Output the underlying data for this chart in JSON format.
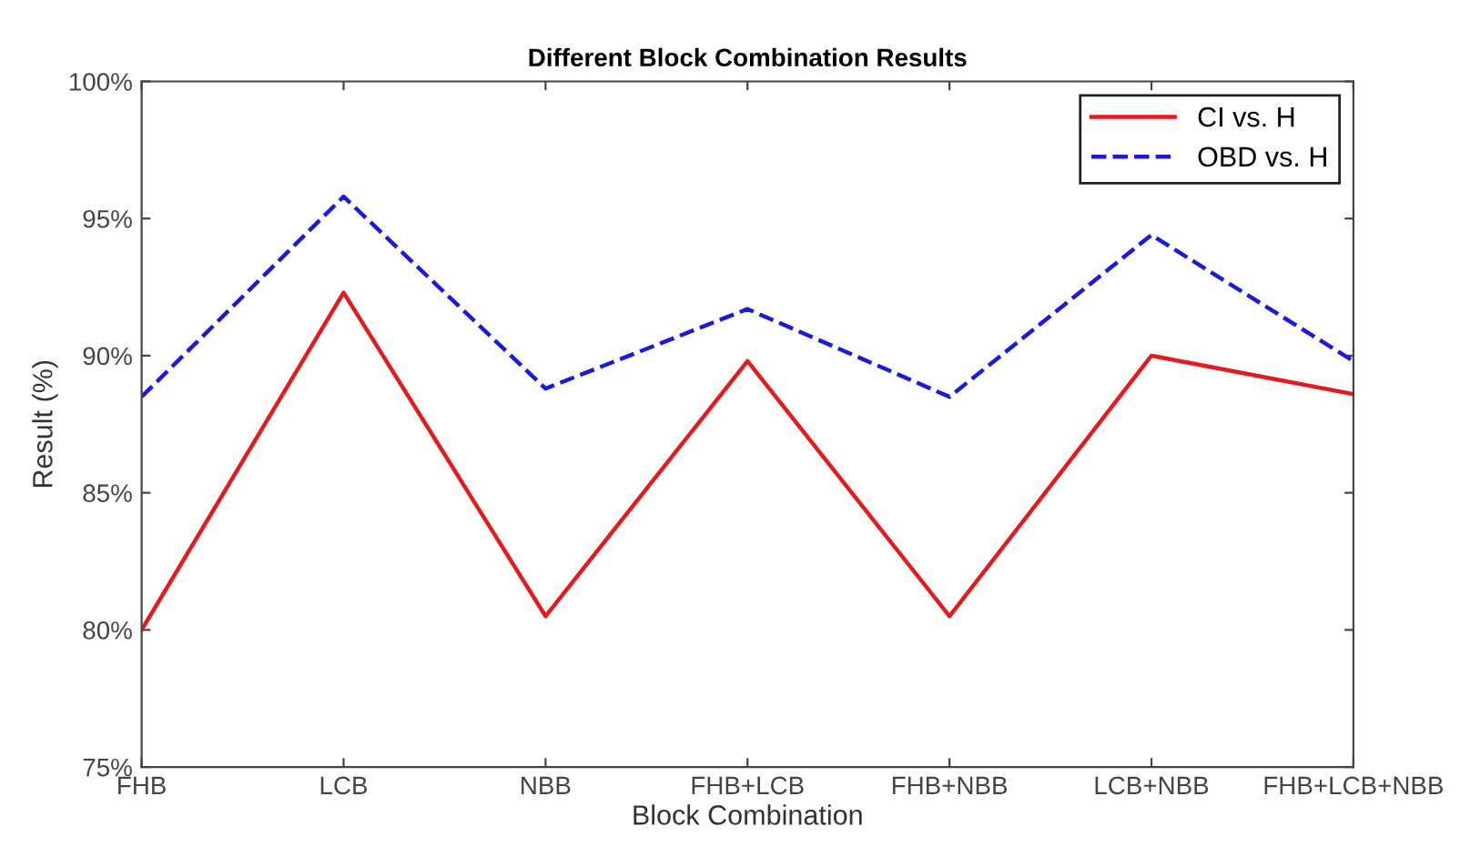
{
  "chart_data": {
    "type": "line",
    "title": "Different Block Combination Results",
    "xlabel": "Block Combination",
    "ylabel": "Result (%)",
    "categories": [
      "FHB",
      "LCB",
      "NBB",
      "FHB+LCB",
      "FHB+NBB",
      "LCB+NBB",
      "FHB+LCB+NBB"
    ],
    "series": [
      {
        "name": "CI vs. H",
        "color": "#e41a1c",
        "line_style": "solid",
        "values": [
          80.0,
          92.3,
          80.5,
          89.8,
          80.5,
          90.0,
          88.6
        ]
      },
      {
        "name": "OBD vs. H",
        "color": "#1a1adb",
        "line_style": "dashed",
        "values": [
          88.5,
          95.8,
          88.8,
          91.7,
          88.5,
          94.4,
          89.8
        ]
      }
    ],
    "ylim": [
      75,
      100
    ],
    "yticks": [
      {
        "value": 75,
        "label": "75%"
      },
      {
        "value": 80,
        "label": "80%"
      },
      {
        "value": 85,
        "label": "85%"
      },
      {
        "value": 90,
        "label": "90%"
      },
      {
        "value": 95,
        "label": "95%"
      },
      {
        "value": 100,
        "label": "100%"
      }
    ],
    "grid": false,
    "legend": "top right",
    "marker": "none"
  }
}
